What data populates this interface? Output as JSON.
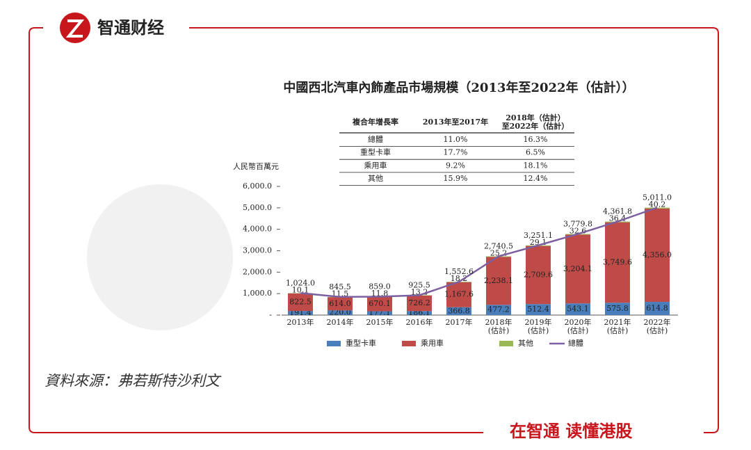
{
  "brand": "智通财经",
  "slogan": "在智通 读懂港股",
  "source": "資料來源：弗若斯特沙利文",
  "table": {
    "header": [
      "複合年增長率",
      "2013年至2017年",
      "2018年（估計）\n至2022年（估計）"
    ],
    "rows": [
      [
        "總體",
        "11.0%",
        "16.3%"
      ],
      [
        "重型卡車",
        "17.7%",
        "6.5%"
      ],
      [
        "乘用車",
        "9.2%",
        "18.1%"
      ],
      [
        "其他",
        "15.9%",
        "12.4%"
      ]
    ]
  },
  "chart_data": {
    "type": "bar",
    "stacked": true,
    "title": "中國西北汽車內飾產品市場規模（2013年至2022年（估計））",
    "y_label": "人民幣百萬元",
    "categories": [
      "2013年",
      "2014年",
      "2015年",
      "2016年",
      "2017年",
      "2018年\n(估計)",
      "2019年\n(估計)",
      "2020年\n(估計)",
      "2021年\n(估計)",
      "2022年\n(估計)"
    ],
    "ylim": [
      0,
      6000
    ],
    "yticks": [
      {
        "value": 0,
        "label": "-"
      },
      {
        "value": 1000,
        "label": "1,000.0"
      },
      {
        "value": 2000,
        "label": "2,000.0"
      },
      {
        "value": 3000,
        "label": "3,000.0"
      },
      {
        "value": 4000,
        "label": "4,000.0"
      },
      {
        "value": 5000,
        "label": "5,000.0"
      },
      {
        "value": 6000,
        "label": "6,000.0"
      }
    ],
    "series": [
      {
        "name": "重型卡車",
        "type": "bar",
        "color": "#4a7ebb",
        "values": [
          191.4,
          220.0,
          177.1,
          186.1,
          366.8,
          477.2,
          512.4,
          543.1,
          575.8,
          614.8
        ],
        "value_labels": [
          "191.4",
          "220.0",
          "177.1",
          "186.1",
          "366.8",
          "477.2",
          "512.4",
          "543.1",
          "575.8",
          "614.8"
        ]
      },
      {
        "name": "乘用車",
        "type": "bar",
        "color": "#be4b48",
        "values": [
          822.5,
          614.0,
          670.1,
          726.2,
          1167.6,
          2238.1,
          2709.6,
          3204.1,
          3749.6,
          4356.0
        ],
        "value_labels": [
          "822.5",
          "614.0",
          "670.1",
          "726.2",
          "1,167.6",
          "2,238.1",
          "2,709.6",
          "3,204.1",
          "3,749.6",
          "4,356.0"
        ]
      },
      {
        "name": "其他",
        "type": "bar",
        "color": "#98b954",
        "values": [
          10.1,
          11.5,
          11.8,
          13.2,
          18.2,
          25.2,
          29.1,
          32.6,
          36.4,
          40.2
        ],
        "value_labels": [
          "10.1",
          "11.5",
          "11.8",
          "13.2",
          "18.2",
          "25.2",
          "29.1",
          "32.6",
          "36.4",
          "40.2"
        ]
      },
      {
        "name": "總體",
        "type": "line",
        "color": "#7d60a0",
        "values": [
          1024.0,
          845.5,
          859.0,
          925.5,
          1552.6,
          2740.5,
          3251.1,
          3779.8,
          4361.8,
          5011.0
        ],
        "value_labels": [
          "1,024.0",
          "845.5",
          "859.0",
          "925.5",
          "1,552.6",
          "2,740.5",
          "3,251.1",
          "3,779.8",
          "4,361.8",
          "5,011.0"
        ]
      }
    ]
  }
}
